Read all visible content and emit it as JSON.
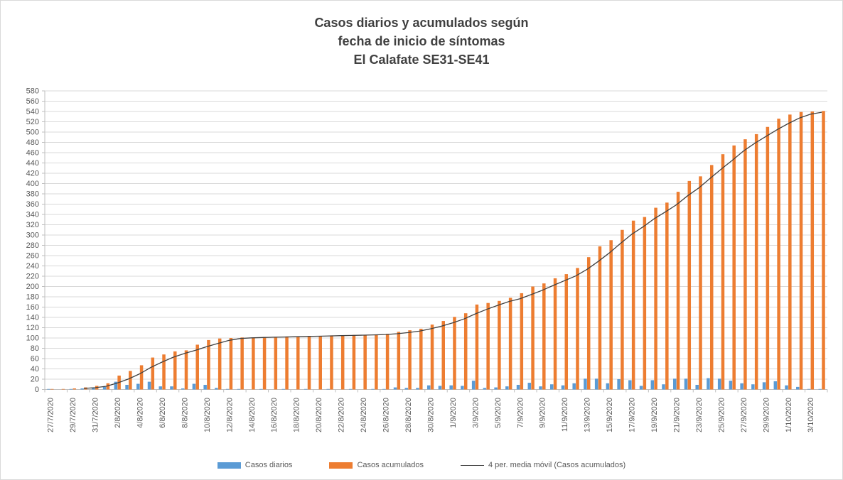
{
  "window": {
    "background": "#FFFFFF",
    "border_color": "#D9D9D9"
  },
  "title": "Casos diarios y acumulados según\nfecha de inicio de síntomas\nEl Calafate SE31-SE41",
  "legend": {
    "daily": "Casos diarios",
    "cumulative": "Casos acumulados",
    "moving_avg": "4 per. media móvil (Casos acumulados)"
  },
  "chart_data": {
    "type": "bar",
    "title": "Casos diarios y acumulados según fecha de inicio de síntomas El Calafate SE31-SE41",
    "x": [
      "27/7/2020",
      "28/7/2020",
      "29/7/2020",
      "30/7/2020",
      "31/7/2020",
      "1/8/2020",
      "2/8/2020",
      "3/8/2020",
      "4/8/2020",
      "5/8/2020",
      "6/8/2020",
      "7/8/2020",
      "8/8/2020",
      "9/8/2020",
      "10/8/2020",
      "11/8/2020",
      "12/8/2020",
      "13/8/2020",
      "14/8/2020",
      "15/8/2020",
      "16/8/2020",
      "17/8/2020",
      "18/8/2020",
      "19/8/2020",
      "20/8/2020",
      "21/8/2020",
      "22/8/2020",
      "23/8/2020",
      "24/8/2020",
      "25/8/2020",
      "26/8/2020",
      "27/8/2020",
      "28/8/2020",
      "29/8/2020",
      "30/8/2020",
      "31/8/2020",
      "1/9/2020",
      "2/9/2020",
      "3/9/2020",
      "4/9/2020",
      "5/9/2020",
      "6/9/2020",
      "7/9/2020",
      "8/9/2020",
      "9/9/2020",
      "10/9/2020",
      "11/9/2020",
      "12/9/2020",
      "13/9/2020",
      "14/9/2020",
      "15/9/2020",
      "16/9/2020",
      "17/9/2020",
      "18/9/2020",
      "19/9/2020",
      "20/9/2020",
      "21/9/2020",
      "22/9/2020",
      "23/9/2020",
      "24/9/2020",
      "25/9/2020",
      "26/9/2020",
      "27/9/2020",
      "28/9/2020",
      "29/9/2020",
      "30/9/2020",
      "1/10/2020",
      "2/10/2020",
      "3/10/2020",
      "4/10/2020"
    ],
    "series": [
      {
        "name": "Casos diarios",
        "type": "bar",
        "color": "#5B9BD5",
        "values": [
          1,
          0,
          1,
          2,
          3,
          5,
          15,
          9,
          11,
          15,
          6,
          6,
          2,
          11,
          9,
          3,
          1,
          1,
          0,
          1,
          0,
          1,
          0,
          1,
          0,
          1,
          0,
          1,
          0,
          1,
          1,
          4,
          3,
          3,
          8,
          7,
          8,
          7,
          17,
          3,
          4,
          6,
          9,
          13,
          6,
          10,
          8,
          12,
          21,
          21,
          12,
          20,
          18,
          7,
          18,
          10,
          21,
          21,
          9,
          22,
          21,
          17,
          12,
          10,
          14,
          16,
          8,
          5,
          1,
          1
        ]
      },
      {
        "name": "Casos acumulados",
        "type": "bar",
        "color": "#ED7D31",
        "values": [
          1,
          1,
          2,
          4,
          7,
          12,
          27,
          36,
          47,
          62,
          68,
          74,
          76,
          87,
          96,
          99,
          100,
          101,
          101,
          102,
          102,
          103,
          103,
          104,
          104,
          105,
          105,
          106,
          106,
          107,
          108,
          112,
          115,
          118,
          126,
          133,
          141,
          148,
          165,
          168,
          172,
          178,
          187,
          200,
          206,
          216,
          224,
          236,
          257,
          278,
          290,
          310,
          328,
          335,
          353,
          363,
          384,
          405,
          414,
          436,
          457,
          474,
          486,
          496,
          510,
          526,
          534,
          539,
          540,
          541
        ]
      },
      {
        "name": "4 per. media móvil (Casos acumulados)",
        "type": "moving_average_line",
        "color": "#404040",
        "window": 4,
        "source": "Casos acumulados"
      }
    ],
    "ylim": [
      0,
      580
    ],
    "ytick_step": 20,
    "x_label_interval": 2,
    "grid": true,
    "legend_position": "bottom",
    "axis_label_color": "#595959",
    "gridline_color": "#D9D9D9",
    "axis_line_color": "#BFBFBF"
  }
}
